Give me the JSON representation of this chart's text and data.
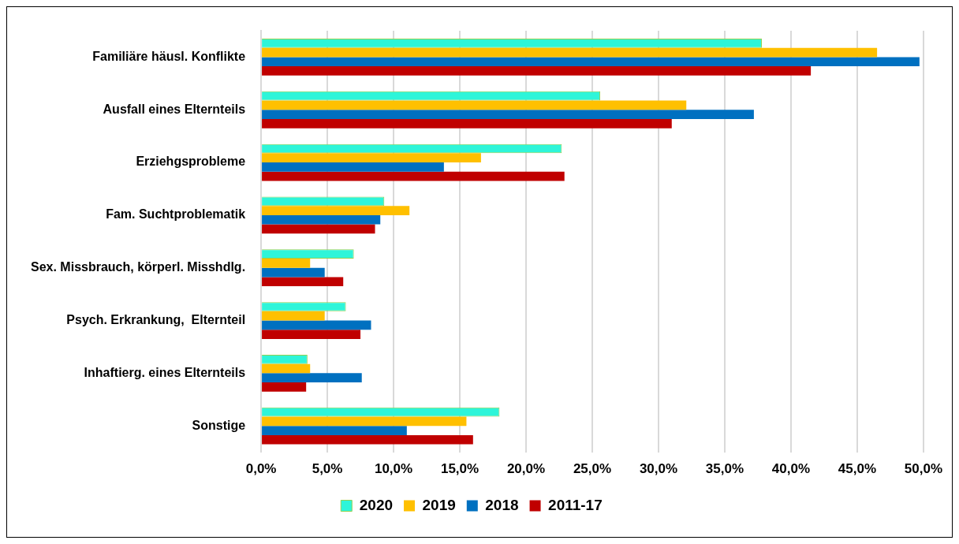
{
  "chart_data": {
    "type": "bar",
    "orientation": "horizontal",
    "categories": [
      "Familiäre häusl. Konflikte",
      "Ausfall eines Elternteils",
      "Erziehgsprobleme",
      "Fam. Suchtproblematik",
      "Sex. Missbrauch, körperl. Misshdlg.",
      "Psych. Erkrankung,  Elternteil",
      "Inhaftierg. eines Elternteils",
      "Sonstige"
    ],
    "series": [
      {
        "name": "2020",
        "color": "#2ef5d9",
        "values": [
          37.8,
          25.6,
          22.7,
          9.3,
          7.0,
          6.4,
          3.5,
          18.0
        ]
      },
      {
        "name": "2019",
        "color": "#ffc000",
        "values": [
          46.5,
          32.1,
          16.6,
          11.2,
          3.7,
          4.8,
          3.7,
          15.5
        ]
      },
      {
        "name": "2018",
        "color": "#0070c0",
        "values": [
          49.7,
          37.2,
          13.8,
          9.0,
          4.8,
          8.3,
          7.6,
          11.0
        ]
      },
      {
        "name": "2011-17",
        "color": "#c00000",
        "values": [
          41.5,
          31.0,
          22.9,
          8.6,
          6.2,
          7.5,
          3.4,
          16.0
        ]
      }
    ],
    "xlim": [
      0,
      50
    ],
    "xticks": [
      {
        "value": 0,
        "label": "0,0%"
      },
      {
        "value": 5,
        "label": "5,0%"
      },
      {
        "value": 10,
        "label": "10,0%"
      },
      {
        "value": 15,
        "label": "15,0%"
      },
      {
        "value": 20,
        "label": "20,0%"
      },
      {
        "value": 25,
        "label": "25,0%"
      },
      {
        "value": 30,
        "label": "30,0%"
      },
      {
        "value": 35,
        "label": "35,0%"
      },
      {
        "value": 40,
        "label": "40,0%"
      },
      {
        "value": 45,
        "label": "45,0%"
      },
      {
        "value": 50,
        "label": "50,0%"
      }
    ],
    "grid": "x",
    "legend": "bottom"
  }
}
